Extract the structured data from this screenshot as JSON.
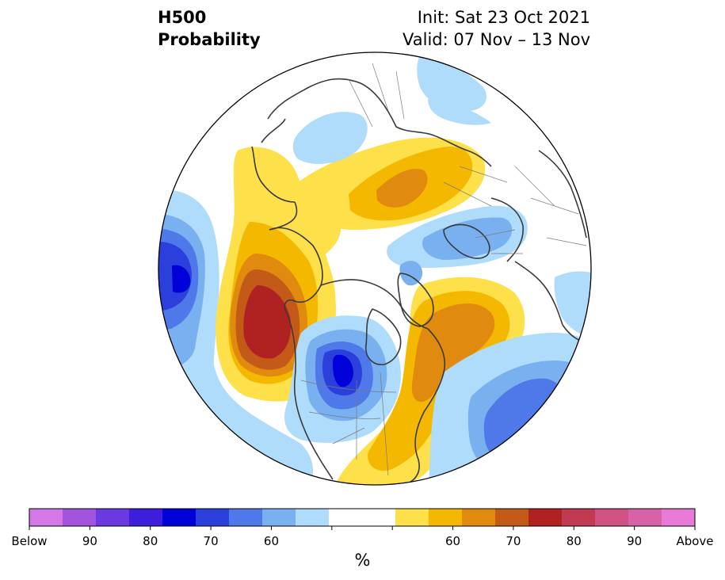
{
  "title": {
    "line1": "H500",
    "line2": "Probability"
  },
  "subtitle": {
    "init": "Init: Sat 23 Oct 2021",
    "valid": "Valid: 07 Nov – 13 Nov"
  },
  "colorbar": {
    "unit": "%",
    "colors": [
      "#d478e8",
      "#a255dc",
      "#6b39e0",
      "#3d1edb",
      "#0000d8",
      "#2a3fdc",
      "#4f78e8",
      "#78b0f0",
      "#aedcfa",
      "#ffffff",
      "#ffffff",
      "#fde04a",
      "#f4b800",
      "#e08a10",
      "#c45a18",
      "#b02222",
      "#c03a52",
      "#d05282",
      "#d862a8",
      "#e87ad8"
    ],
    "tick_labels": [
      "Below",
      "90",
      "80",
      "70",
      "60",
      "",
      "",
      "60",
      "70",
      "80",
      "90",
      "Above"
    ]
  },
  "legend_colors": {
    "below_strong": "#0000d8",
    "below_med": "#2a3fdc",
    "below_low": "#4f78e8",
    "below_weak": "#78b0f0",
    "below_faint": "#aedcfa",
    "above_faint": "#fde04a",
    "above_low": "#f4b800",
    "above_med": "#e08a10",
    "above_high": "#c45a18",
    "above_strong": "#b02222"
  }
}
